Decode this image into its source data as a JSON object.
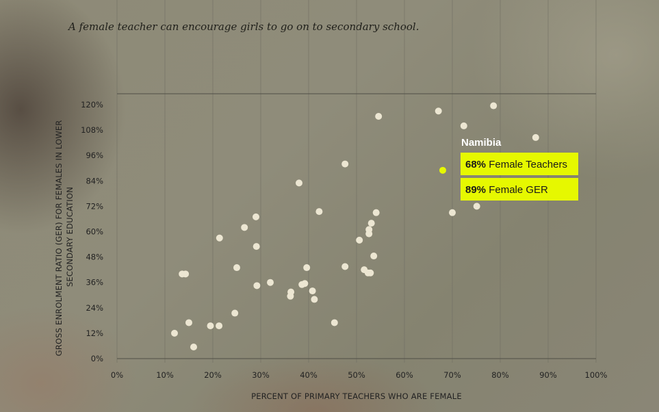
{
  "title": "A female teacher can encourage girls to go on to secondary school.",
  "colors": {
    "point": "#ece6d2",
    "highlight_point": "#e6f800",
    "highlight_box": "#e6f800",
    "gridline": "#6e6c60",
    "topline": "#4f4e46"
  },
  "chart_data": {
    "type": "scatter",
    "xlabel": "PERCENT OF PRIMARY TEACHERS WHO ARE FEMALE",
    "ylabel_lines": [
      "GROSS ENROLMENT RATIO (GER) FOR FEMALES IN LOWER",
      "SECONDARY EDUCATION"
    ],
    "xlim": [
      0,
      100
    ],
    "ylim": [
      0,
      120
    ],
    "x_ticks": [
      "0%",
      "10%",
      "20%",
      "30%",
      "40%",
      "50%",
      "60%",
      "70%",
      "80%",
      "90%",
      "100%"
    ],
    "y_ticks": [
      "0%",
      "12%",
      "24%",
      "36%",
      "48%",
      "60%",
      "72%",
      "84%",
      "96%",
      "108%",
      "120%"
    ],
    "grid": "vertical",
    "points": [
      {
        "x": 12,
        "y": 12
      },
      {
        "x": 13.6,
        "y": 40
      },
      {
        "x": 14.3,
        "y": 40
      },
      {
        "x": 15,
        "y": 17
      },
      {
        "x": 16,
        "y": 5.5
      },
      {
        "x": 19.5,
        "y": 15.5
      },
      {
        "x": 21.3,
        "y": 15.5
      },
      {
        "x": 21.4,
        "y": 57
      },
      {
        "x": 24.6,
        "y": 21.5
      },
      {
        "x": 25,
        "y": 43
      },
      {
        "x": 26.6,
        "y": 62
      },
      {
        "x": 29,
        "y": 67
      },
      {
        "x": 29.1,
        "y": 53
      },
      {
        "x": 29.2,
        "y": 34.5
      },
      {
        "x": 32,
        "y": 36
      },
      {
        "x": 36.2,
        "y": 29.5
      },
      {
        "x": 36.3,
        "y": 31.5
      },
      {
        "x": 38,
        "y": 83
      },
      {
        "x": 38.6,
        "y": 35
      },
      {
        "x": 39.2,
        "y": 35.5
      },
      {
        "x": 39.6,
        "y": 43
      },
      {
        "x": 40.8,
        "y": 32
      },
      {
        "x": 41.2,
        "y": 28
      },
      {
        "x": 42.2,
        "y": 69.5
      },
      {
        "x": 45.4,
        "y": 17
      },
      {
        "x": 47.6,
        "y": 92
      },
      {
        "x": 47.6,
        "y": 43.5
      },
      {
        "x": 50.6,
        "y": 56
      },
      {
        "x": 51.6,
        "y": 42
      },
      {
        "x": 52.4,
        "y": 40.5
      },
      {
        "x": 52.6,
        "y": 61
      },
      {
        "x": 52.6,
        "y": 59
      },
      {
        "x": 52.9,
        "y": 40.5
      },
      {
        "x": 53.1,
        "y": 64
      },
      {
        "x": 53.6,
        "y": 48.5
      },
      {
        "x": 54.1,
        "y": 69
      },
      {
        "x": 54.6,
        "y": 114.5
      },
      {
        "x": 67.1,
        "y": 117
      },
      {
        "x": 70,
        "y": 69
      },
      {
        "x": 72.4,
        "y": 110
      },
      {
        "x": 75.1,
        "y": 72
      },
      {
        "x": 78.6,
        "y": 119.5
      },
      {
        "x": 87.4,
        "y": 104.5
      }
    ],
    "highlight": {
      "name": "Namibia",
      "x": 68,
      "y": 89,
      "line1_value": "68%",
      "line1_text": " Female Teachers",
      "line2_value": "89%",
      "line2_text": " Female GER"
    }
  }
}
